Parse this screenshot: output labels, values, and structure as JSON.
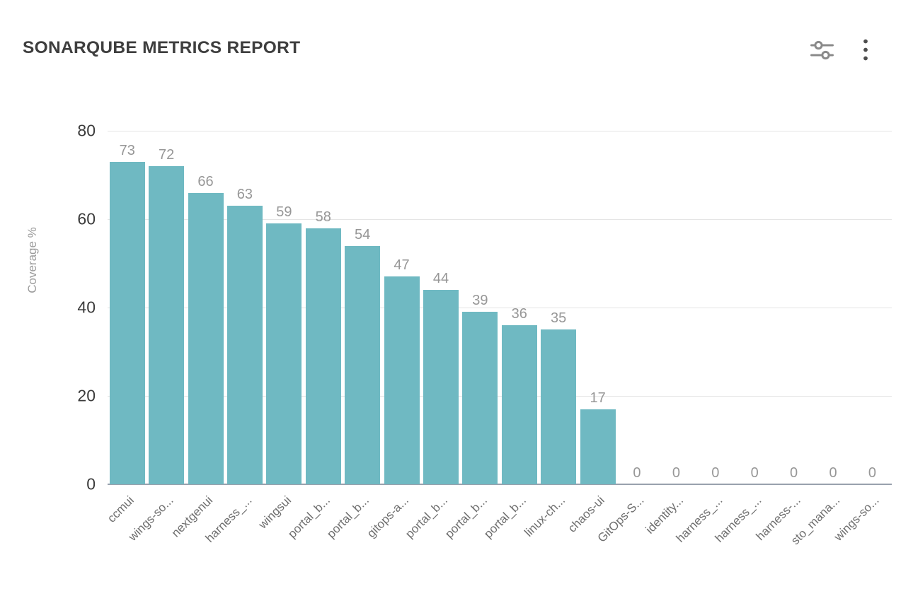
{
  "header": {
    "title": "SONARQUBE METRICS REPORT"
  },
  "icons": {
    "filter": "sliders-filter-icon",
    "menu": "kebab-menu-icon"
  },
  "chart_data": {
    "type": "bar",
    "title": "SONARQUBE METRICS REPORT",
    "xlabel": "",
    "ylabel": "Coverage %",
    "ylim": [
      0,
      80
    ],
    "yticks": [
      0,
      20,
      40,
      60,
      80
    ],
    "grid": true,
    "legend": false,
    "bar_color": "#6FB9C2",
    "categories": [
      "ccmui",
      "wings-so...",
      "nextgenui",
      "harness_...",
      "wingsui",
      "portal_b...",
      "portal_b...",
      "gitops-a...",
      "portal_b...",
      "portal_b...",
      "portal_b...",
      "linux-ch...",
      "chaos-ui",
      "GitOps-S...",
      "identity...",
      "harness_...",
      "harness_...",
      "harness-...",
      "sto_mana...",
      "wings-so..."
    ],
    "values": [
      73,
      72,
      66,
      63,
      59,
      58,
      54,
      47,
      44,
      39,
      36,
      35,
      17,
      0,
      0,
      0,
      0,
      0,
      0,
      0
    ]
  }
}
